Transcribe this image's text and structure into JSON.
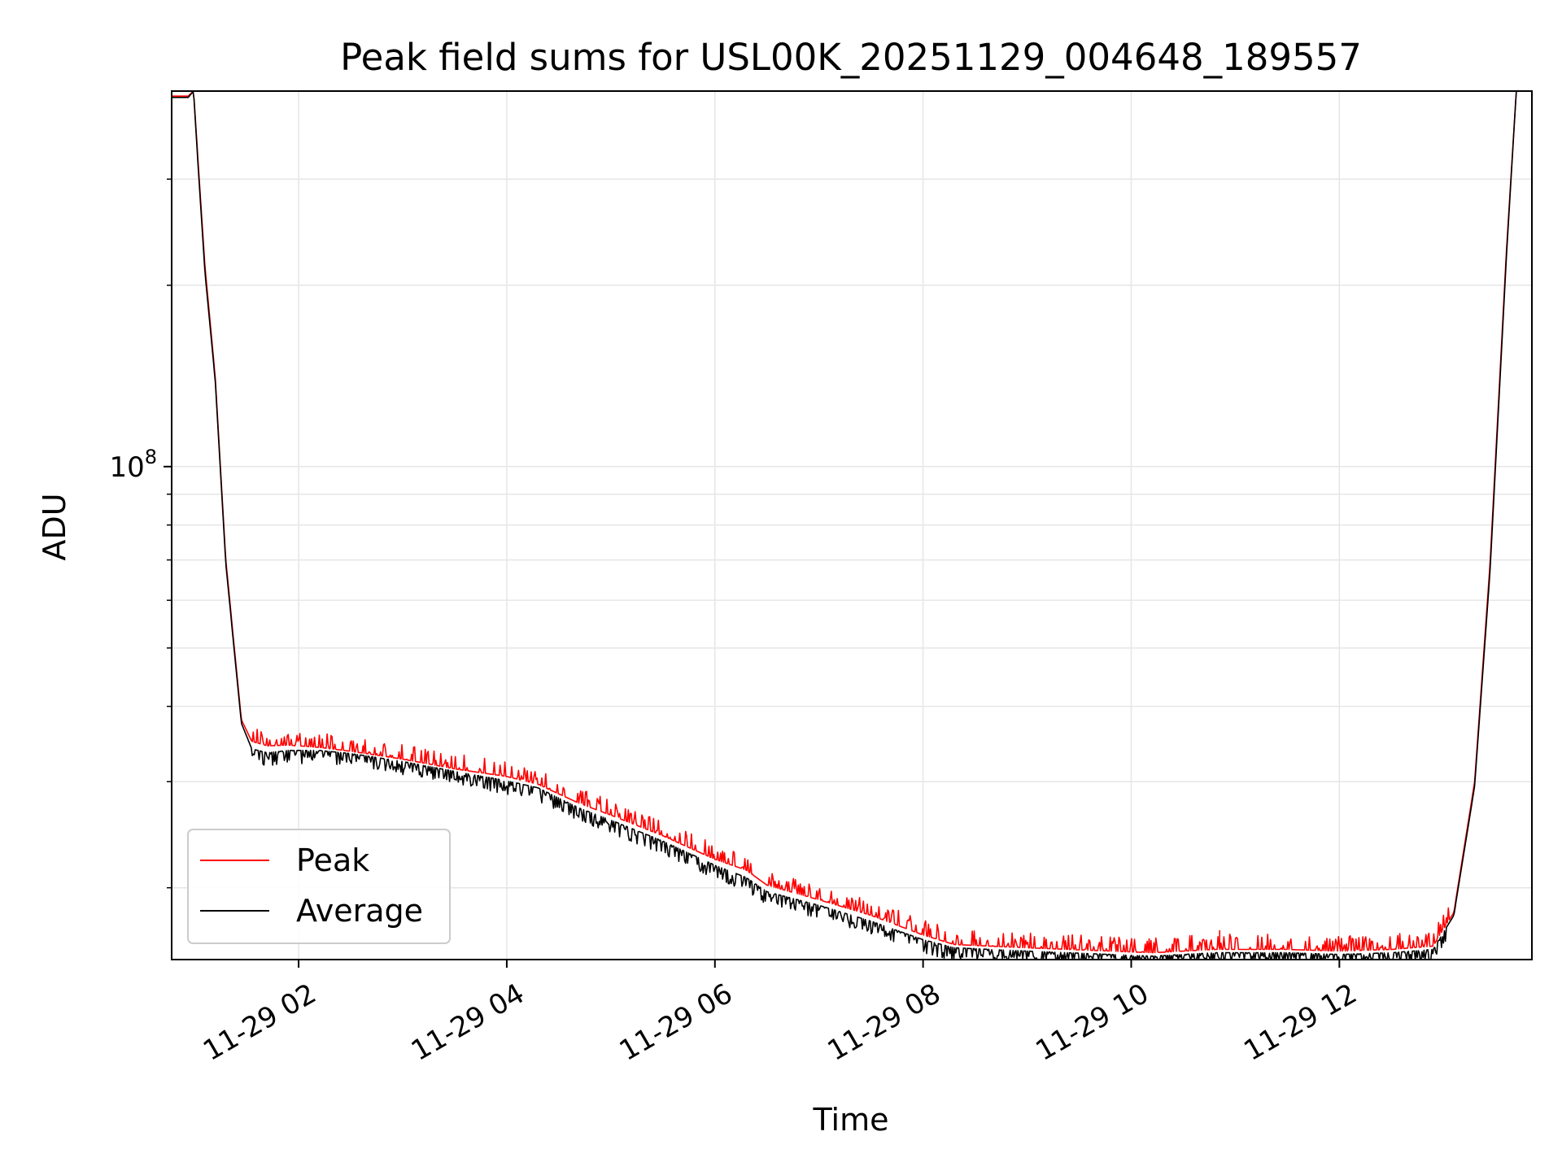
{
  "chart_data": {
    "type": "line",
    "title": "Peak field sums for USL00K_20251129_004648_189557",
    "xlabel": "Time",
    "ylabel": "ADU",
    "yscale": "log",
    "ylim": [
      15200000,
      420000000
    ],
    "xlim_hours": [
      0.78,
      13.85
    ],
    "grid": true,
    "legend_position": "lower-left",
    "x_ticks": [
      {
        "value": 2,
        "label": "11-29 02"
      },
      {
        "value": 4,
        "label": "11-29 04"
      },
      {
        "value": 6,
        "label": "11-29 06"
      },
      {
        "value": 8,
        "label": "11-29 08"
      },
      {
        "value": 10,
        "label": "11-29 10"
      },
      {
        "value": 12,
        "label": "11-29 12"
      }
    ],
    "y_major_tick": {
      "value": 100000000,
      "base": "10",
      "exponent": "8"
    },
    "y_minor_ticks": [
      20000000,
      30000000,
      40000000,
      50000000,
      60000000,
      70000000,
      80000000,
      90000000,
      200000000,
      300000000
    ],
    "x_hours": [
      0.78,
      0.94,
      0.95,
      0.99,
      1.02,
      1.1,
      1.2,
      1.3,
      1.45,
      1.55,
      1.7,
      1.9,
      2.2,
      2.5,
      3.0,
      3.5,
      4.0,
      4.3,
      4.7,
      5.0,
      5.5,
      6.0,
      6.3,
      6.5,
      7.0,
      7.5,
      8.0,
      8.3,
      9.0,
      9.8,
      10.2,
      10.8,
      11.5,
      12.0,
      12.5,
      12.9,
      13.1,
      13.3,
      13.45,
      13.6,
      13.7,
      13.85
    ],
    "series": [
      {
        "name": "Peak",
        "color": "#ff0000",
        "values": [
          412000000,
          412000000,
          414000000,
          420000000,
          350000000,
          215000000,
          140000000,
          70000000,
          38000000,
          35000000,
          34400000,
          34500000,
          34200000,
          33700000,
          32700000,
          31500000,
          30600000,
          29700000,
          27600000,
          26400000,
          24400000,
          22300000,
          21400000,
          20200000,
          19100000,
          18000000,
          16700000,
          16100000,
          15900000,
          15700000,
          15600000,
          15800000,
          15800000,
          15700000,
          15800000,
          16000000,
          18200000,
          30000000,
          70000000,
          220000000,
          420000000,
          420000000
        ]
      },
      {
        "name": "Average",
        "color": "#000000",
        "values": [
          410000000,
          410000000,
          412000000,
          420000000,
          345000000,
          210000000,
          138000000,
          69000000,
          37500000,
          34000000,
          33500000,
          33800000,
          33800000,
          33400000,
          32400000,
          31200000,
          30100000,
          29300000,
          27100000,
          25900000,
          23900000,
          21800000,
          20800000,
          19700000,
          18700000,
          17600000,
          16400000,
          15900000,
          15700000,
          15500000,
          15400000,
          15600000,
          15600000,
          15500000,
          15600000,
          15800000,
          18000000,
          29500000,
          68000000,
          215000000,
          420000000,
          420000000
        ]
      }
    ],
    "annotations": {
      "spike_hours": 10.85,
      "spike_peak": 17000000
    }
  }
}
